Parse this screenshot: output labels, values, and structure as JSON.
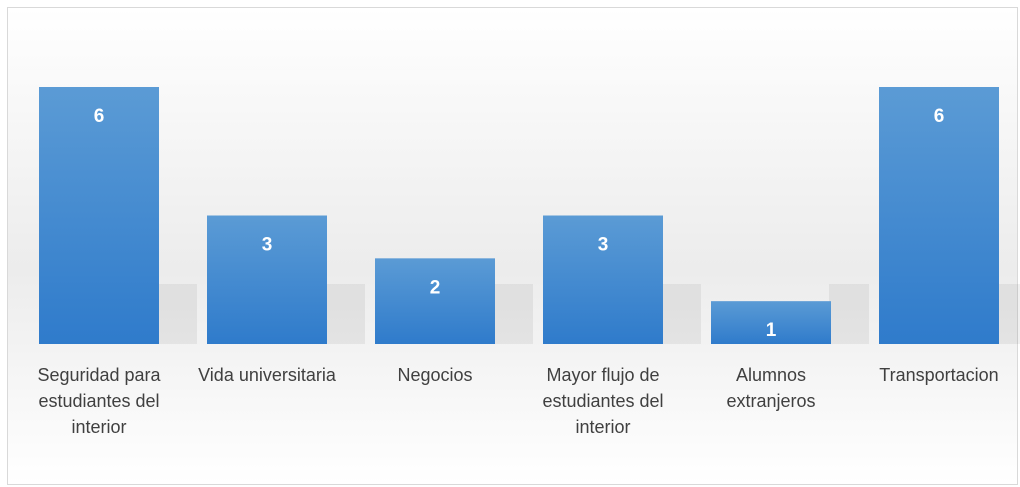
{
  "chart_data": {
    "type": "bar",
    "categories": [
      "Seguridad para estudiantes del interior",
      "Vida universitaria",
      "Negocios",
      "Mayor flujo de estudiantes del interior",
      "Alumnos extranjeros",
      "Transportacion"
    ],
    "values": [
      6,
      3,
      2,
      3,
      1,
      6
    ],
    "color": "#4a8fd6"
  }
}
